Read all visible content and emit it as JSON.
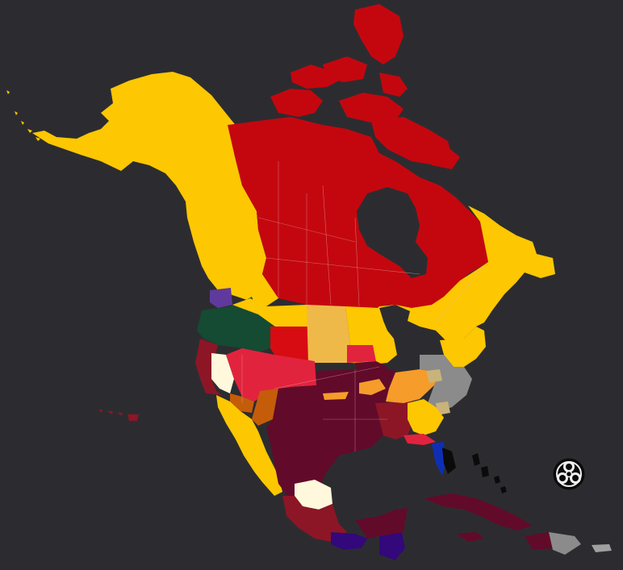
{
  "map": {
    "colors": {
      "background": "#2c2c30",
      "dark_red": "#c4070f",
      "red": "#d60c12",
      "yellow": "#fdc702",
      "tan": "#efb94a",
      "crimson": "#e2233e",
      "maroon": "#620a2a",
      "brick": "#8c1626",
      "dark_green": "#154a33",
      "purple": "#5f3a9c",
      "indigo": "#33087a",
      "orange": "#f59c2a",
      "burnt_orange": "#c55c0a",
      "gray": "#8b8b8b",
      "khaki": "#c9b37a",
      "cream": "#fff8dc",
      "blue": "#0e2fb4",
      "black": "#0b0b0b",
      "silver": "#a0a0a0"
    },
    "icons": [
      "biohazard-icon"
    ]
  }
}
